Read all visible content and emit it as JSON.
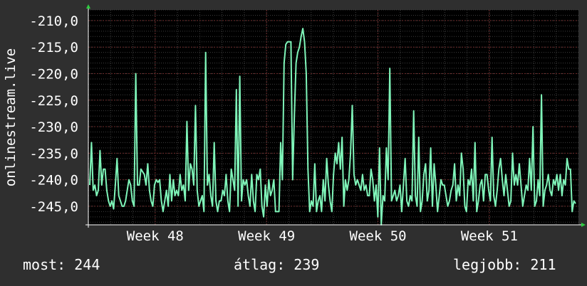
{
  "colors": {
    "background": "#2f2f2f",
    "plot_background": "#000000",
    "series": "#7ff5b9",
    "grid_major": "#6b2a2a",
    "grid_minor": "#3d3d3d",
    "axis_arrow": "#2ecc40",
    "text": "#ffffff"
  },
  "chart_data": {
    "type": "line",
    "title": "",
    "ylabel": "onlinestream.live",
    "xlabel": "",
    "ylim": [
      -248.5,
      -208
    ],
    "yticks": [
      -210,
      -215,
      -220,
      -225,
      -230,
      -235,
      -240,
      -245
    ],
    "ytick_labels": [
      "-210,0",
      "-215,0",
      "-220,0",
      "-225,0",
      "-230,0",
      "-235,0",
      "-240,0",
      "-245,0"
    ],
    "xlim": [
      0,
      4.4
    ],
    "xticks": [
      {
        "x": 0.6,
        "label": "Week 48"
      },
      {
        "x": 1.6,
        "label": "Week 49"
      },
      {
        "x": 2.6,
        "label": "Week 50"
      },
      {
        "x": 3.6,
        "label": "Week 51"
      }
    ],
    "grid": true,
    "series": [
      {
        "values": [
          -241,
          -233,
          -242,
          -241,
          -243,
          -242,
          -234.5,
          -241,
          -238,
          -238,
          -242,
          -244,
          -245,
          -244,
          -245.5,
          -241,
          -236,
          -243,
          -244,
          -245,
          -245,
          -244,
          -242,
          -240,
          -241,
          -244,
          -245,
          -220,
          -241,
          -241,
          -238,
          -238.5,
          -239,
          -241,
          -237,
          -242,
          -244,
          -245,
          -241,
          -240,
          -240.5,
          -240,
          -244,
          -246,
          -244,
          -242,
          -245,
          -239,
          -244,
          -240,
          -243,
          -242,
          -243,
          -239,
          -242,
          -241,
          -244,
          -229,
          -242,
          -237,
          -238,
          -241,
          -226,
          -242,
          -245,
          -244,
          -243,
          -246,
          -216,
          -241,
          -239,
          -243,
          -245,
          -233,
          -244,
          -246,
          -244,
          -244,
          -242,
          -243,
          -239,
          -244,
          -246,
          -238,
          -240,
          -242,
          -223,
          -245,
          -220.5,
          -244,
          -240,
          -241,
          -240,
          -243,
          -245,
          -239,
          -244,
          -246,
          -239,
          -240,
          -238,
          -245,
          -247,
          -241,
          -245,
          -240,
          -243,
          -242,
          -240,
          -246,
          -246,
          -246,
          -233,
          -240,
          -218,
          -214.5,
          -214,
          -214,
          -214,
          -240,
          -228,
          -218,
          -216,
          -215,
          -213,
          -211.5,
          -214,
          -220,
          -238,
          -246,
          -244,
          -245,
          -237,
          -246,
          -244,
          -243,
          -246,
          -240,
          -244,
          -236,
          -241,
          -244,
          -246,
          -239,
          -235,
          -237,
          -233,
          -238,
          -232,
          -245,
          -240,
          -242,
          -240,
          -235,
          -226,
          -239,
          -241,
          -240,
          -241,
          -242,
          -239,
          -242,
          -241,
          -243,
          -243,
          -238,
          -240,
          -244,
          -241,
          -247,
          -234,
          -248.5,
          -243,
          -244,
          -234,
          -240,
          -219,
          -244,
          -243,
          -242,
          -244,
          -243,
          -241,
          -246,
          -241,
          -236,
          -244,
          -245,
          -243,
          -244,
          -227,
          -243,
          -245,
          -232,
          -246,
          -244,
          -239,
          -237,
          -244,
          -242,
          -234,
          -245,
          -237,
          -241,
          -246,
          -243,
          -240,
          -241,
          -241,
          -243,
          -245,
          -244,
          -242,
          -241,
          -237,
          -244,
          -241,
          -243,
          -235,
          -238,
          -245,
          -246,
          -240,
          -241,
          -238,
          -244,
          -233,
          -246,
          -244,
          -241,
          -240,
          -244,
          -239,
          -239,
          -242,
          -244,
          -232,
          -243,
          -245,
          -242,
          -238,
          -236,
          -240,
          -243,
          -239,
          -242,
          -245,
          -244,
          -235,
          -241,
          -239,
          -241,
          -237,
          -241,
          -245,
          -243,
          -241,
          -242,
          -236,
          -242,
          -230,
          -245,
          -244,
          -240,
          -243,
          -224,
          -245,
          -242,
          -241,
          -239,
          -242,
          -243,
          -240,
          -241,
          -239,
          -242,
          -239,
          -243,
          -240,
          -241,
          -236,
          -238,
          -238,
          -246,
          -244,
          -244.5
        ]
      }
    ]
  },
  "footer": {
    "current": "most: 244",
    "average": "átlag: 239",
    "best": "legjobb: 211"
  }
}
